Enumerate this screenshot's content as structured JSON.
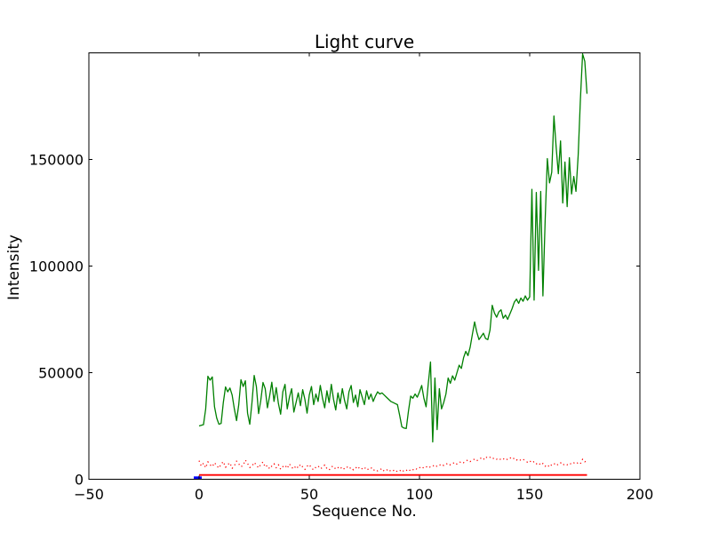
{
  "chart_data": {
    "type": "line",
    "title": "Light curve",
    "xlabel": "Sequence No.",
    "ylabel": "Intensity",
    "xlim": [
      -50,
      200
    ],
    "ylim": [
      0,
      200000
    ],
    "grid": false,
    "legend": "none",
    "background_color": "#ffffff",
    "spine_color": "#000000",
    "x_ticks": [
      {
        "v": -50,
        "label": "−50"
      },
      {
        "v": 0,
        "label": "0"
      },
      {
        "v": 50,
        "label": "50"
      },
      {
        "v": 100,
        "label": "100"
      },
      {
        "v": 150,
        "label": "150"
      },
      {
        "v": 200,
        "label": "200"
      }
    ],
    "y_ticks": [
      {
        "v": 0,
        "label": "0"
      },
      {
        "v": 50000,
        "label": "50000"
      },
      {
        "v": 100000,
        "label": "100000"
      },
      {
        "v": 150000,
        "label": "150000"
      }
    ],
    "series": [
      {
        "name": "green-line",
        "color": "#008000",
        "style": "solid",
        "linewidth": 1.3,
        "x_start": 0,
        "x_step": 1,
        "values": [
          25000,
          25300,
          25600,
          33000,
          48300,
          46500,
          48000,
          34000,
          28700,
          25800,
          26200,
          36000,
          43300,
          41000,
          42800,
          39500,
          33000,
          27500,
          35000,
          46700,
          43500,
          46200,
          31000,
          25800,
          36000,
          48700,
          43500,
          30800,
          37000,
          45400,
          42500,
          33500,
          39000,
          45500,
          36500,
          43000,
          35500,
          30500,
          41000,
          44500,
          33000,
          38500,
          42500,
          31500,
          36000,
          40500,
          34500,
          42000,
          37500,
          31000,
          39500,
          43500,
          35000,
          40000,
          36500,
          44000,
          38000,
          33500,
          41500,
          36000,
          44500,
          37500,
          32500,
          40500,
          35500,
          42500,
          37000,
          33000,
          41000,
          44000,
          36000,
          39500,
          34000,
          42000,
          38500,
          35000,
          41500,
          37500,
          40000,
          36500,
          39000,
          41000,
          40000,
          40500,
          39500,
          38500,
          37500,
          36500,
          36000,
          35500,
          35000,
          30000,
          24600,
          24000,
          23800,
          32000,
          39000,
          38000,
          40000,
          38500,
          41000,
          44000,
          38000,
          34000,
          45000,
          55000,
          17500,
          47500,
          23300,
          42500,
          33000,
          36000,
          40000,
          47500,
          45000,
          48500,
          46500,
          50000,
          53500,
          52000,
          57000,
          60000,
          58000,
          62000,
          68000,
          73800,
          69000,
          65500,
          67000,
          68500,
          66000,
          65500,
          70000,
          81600,
          78000,
          76000,
          78500,
          79500,
          75500,
          77000,
          75000,
          77500,
          80000,
          83000,
          84500,
          82500,
          85000,
          83500,
          86000,
          84000,
          85500,
          136000,
          84000,
          134500,
          98000,
          135000,
          86000,
          121000,
          150400,
          139000,
          144000,
          170400,
          155800,
          143300,
          158700,
          129600,
          148800,
          127900,
          150800,
          133800,
          142000,
          135000,
          152000,
          178000,
          199500,
          196000,
          180800
        ]
      },
      {
        "name": "red-dotted-line",
        "color": "#ff0000",
        "style": "dotted",
        "linewidth": 1.3,
        "x_start": 0,
        "x_step": 1,
        "values": [
          8700,
          6200,
          7500,
          5400,
          8200,
          6800,
          5900,
          7800,
          6400,
          5200,
          7100,
          8300,
          5600,
          6900,
          7700,
          5100,
          6300,
          8500,
          7200,
          5800,
          6600,
          9000,
          7400,
          5500,
          6100,
          7900,
          6700,
          5300,
          7000,
          8100,
          5700,
          6500,
          4900,
          6200,
          7300,
          5400,
          6800,
          4700,
          5900,
          6600,
          5100,
          7200,
          5600,
          4800,
          6400,
          5300,
          7000,
          5800,
          4600,
          6100,
          6900,
          5200,
          4400,
          5700,
          6300,
          4900,
          5500,
          6700,
          5000,
          4300,
          5800,
          6200,
          4700,
          5400,
          6000,
          4500,
          5100,
          5900,
          4800,
          5600,
          4400,
          5200,
          6100,
          4600,
          5000,
          5700,
          4300,
          4900,
          5500,
          4100,
          4700,
          3900,
          4400,
          5100,
          3700,
          4200,
          4800,
          3600,
          4000,
          4500,
          3400,
          3900,
          4600,
          3500,
          4100,
          4800,
          3800,
          4400,
          5200,
          4600,
          5400,
          6000,
          5100,
          5700,
          6300,
          5500,
          6100,
          6800,
          5900,
          6500,
          7200,
          6400,
          7000,
          7600,
          6700,
          7300,
          8000,
          7100,
          7700,
          8400,
          7800,
          8500,
          9100,
          8300,
          8900,
          9500,
          8700,
          9300,
          10000,
          9200,
          10600,
          9800,
          10300,
          9500,
          10100,
          9400,
          9900,
          9100,
          9700,
          8900,
          9500,
          10200,
          9300,
          9900,
          9000,
          9600,
          8800,
          9400,
          8600,
          8000,
          8700,
          7700,
          8300,
          7200,
          7800,
          6600,
          7400,
          6100,
          6800,
          5700,
          6900,
          7500,
          6400,
          7100,
          7800,
          6600,
          7300,
          6800,
          7600,
          7000,
          7700,
          7100,
          7900,
          7300,
          9400,
          8200,
          8800
        ]
      },
      {
        "name": "red-solid-line",
        "color": "#ff0000",
        "style": "solid",
        "linewidth": 1.8,
        "x": [
          0,
          176
        ],
        "values": [
          2000,
          2000
        ]
      },
      {
        "name": "blue-segment",
        "color": "#0000ff",
        "style": "solid",
        "linewidth": 3.5,
        "x": [
          -2.4,
          1.2
        ],
        "values": [
          600,
          600
        ]
      }
    ]
  }
}
